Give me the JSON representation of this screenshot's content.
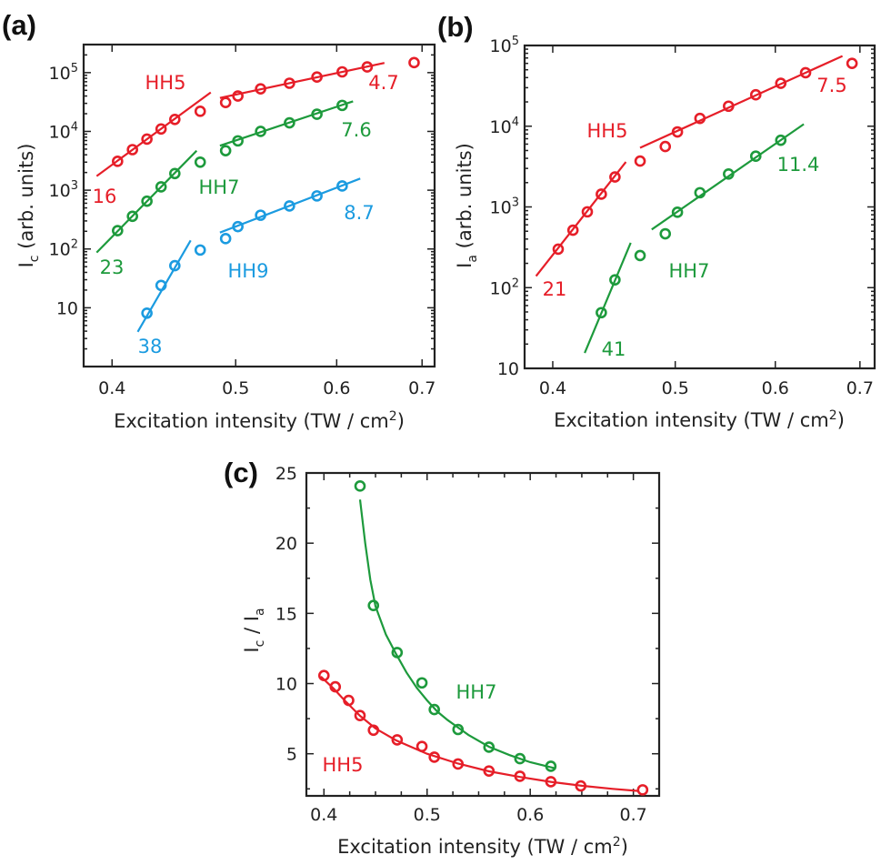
{
  "figure": {
    "panel_labels": [
      "(a)",
      "(b)",
      "(c)"
    ]
  },
  "colors": {
    "HH5": "#e61e28",
    "HH7": "#1d9a3c",
    "HH9": "#1b9be0",
    "axis": "#222222"
  },
  "chart_data": [
    {
      "panel": "(a)",
      "type": "scatter",
      "xscale": "log",
      "yscale": "log",
      "xlim": [
        0.38,
        0.716
      ],
      "ylim": [
        1,
        300000
      ],
      "xlabel": {
        "text": "Excitation intensity (TW / cm",
        "sup": "2",
        "after": ")"
      },
      "ylabel": {
        "main": "I",
        "sub": "c",
        "after": " (arb. units)"
      },
      "xticks": [
        {
          "value": 0.4,
          "label": "0.4"
        },
        {
          "value": 0.5,
          "label": "0.5"
        },
        {
          "value": 0.6,
          "label": "0.6"
        },
        {
          "value": 0.7,
          "label": "0.7"
        }
      ],
      "yticks": [
        {
          "value": 10,
          "label": "10",
          "sup": ""
        },
        {
          "value": 100,
          "label": "10",
          "sup": "2"
        },
        {
          "value": 1000,
          "label": "10",
          "sup": "3"
        },
        {
          "value": 10000,
          "label": "10",
          "sup": "4"
        },
        {
          "value": 100000,
          "label": "10",
          "sup": "5"
        }
      ],
      "series": [
        {
          "name": "HH5",
          "color": "#e61e28",
          "x": [
            0.404,
            0.415,
            0.426,
            0.437,
            0.448,
            0.469,
            0.491,
            0.502,
            0.523,
            0.551,
            0.579,
            0.606,
            0.634,
            0.69
          ],
          "y": [
            3100,
            4900,
            7400,
            11000,
            16000,
            22000,
            31000,
            40000,
            53000,
            66000,
            84000,
            103000,
            125000,
            148000
          ],
          "fits": [
            {
              "x": [
                0.389,
                0.478
              ],
              "y": [
                1740,
                46000
              ],
              "label": "16"
            },
            {
              "x": [
                0.486,
                0.654
              ],
              "y": [
                37000,
                146000
              ],
              "label": "4.7"
            }
          ]
        },
        {
          "name": "HH7",
          "color": "#1d9a3c",
          "x": [
            0.404,
            0.415,
            0.426,
            0.437,
            0.448,
            0.469,
            0.491,
            0.502,
            0.523,
            0.551,
            0.579,
            0.606
          ],
          "y": [
            205,
            360,
            650,
            1140,
            1920,
            3000,
            4700,
            6900,
            10000,
            14000,
            19600,
            27700
          ],
          "fits": [
            {
              "x": [
                0.389,
                0.466
              ],
              "y": [
                87,
                4700
              ],
              "label": "23"
            },
            {
              "x": [
                0.486,
                0.618
              ],
              "y": [
                5700,
                32500
              ],
              "label": "7.6"
            }
          ]
        },
        {
          "name": "HH9",
          "color": "#1b9be0",
          "x": [
            0.426,
            0.437,
            0.448,
            0.469,
            0.491,
            0.502,
            0.523,
            0.551,
            0.579,
            0.606
          ],
          "y": [
            8.1,
            24,
            52,
            96,
            150,
            240,
            375,
            540,
            800,
            1180
          ],
          "fits": [
            {
              "x": [
                0.419,
                0.461
              ],
              "y": [
                3.9,
                140
              ],
              "label": "38"
            },
            {
              "x": [
                0.486,
                0.626
              ],
              "y": [
                190,
                1580
              ],
              "label": "8.7"
            }
          ]
        }
      ]
    },
    {
      "panel": "(b)",
      "type": "scatter",
      "xscale": "log",
      "yscale": "log",
      "xlim": [
        0.38,
        0.719
      ],
      "ylim": [
        10,
        100000
      ],
      "xlabel": {
        "text": "Excitation intensity (TW / cm",
        "sup": "2",
        "after": ")"
      },
      "ylabel": {
        "main": "I",
        "sub": "a",
        "after": " (arb. units)"
      },
      "xticks": [
        {
          "value": 0.4,
          "label": "0.4"
        },
        {
          "value": 0.5,
          "label": "0.5"
        },
        {
          "value": 0.6,
          "label": "0.6"
        },
        {
          "value": 0.7,
          "label": "0.7"
        }
      ],
      "yticks": [
        {
          "value": 10,
          "label": "10",
          "sup": ""
        },
        {
          "value": 100,
          "label": "10",
          "sup": "2"
        },
        {
          "value": 1000,
          "label": "10",
          "sup": "3"
        },
        {
          "value": 10000,
          "label": "10",
          "sup": "4"
        },
        {
          "value": 100000,
          "label": "10",
          "sup": "5"
        }
      ],
      "series": [
        {
          "name": "HH5",
          "color": "#e61e28",
          "x": [
            0.404,
            0.415,
            0.426,
            0.437,
            0.448,
            0.469,
            0.491,
            0.502,
            0.523,
            0.551,
            0.579,
            0.606,
            0.634,
            0.69
          ],
          "y": [
            300,
            515,
            870,
            1440,
            2350,
            3700,
            5600,
            8500,
            12500,
            17700,
            24500,
            34000,
            46000,
            60000
          ],
          "fits": [
            {
              "x": [
                0.388,
                0.457
              ],
              "y": [
                139,
                3600
              ],
              "label": "21"
            },
            {
              "x": [
                0.469,
                0.678
              ],
              "y": [
                5400,
                74000
              ],
              "label": "7.5"
            }
          ]
        },
        {
          "name": "HH7",
          "color": "#1d9a3c",
          "x": [
            0.437,
            0.448,
            0.469,
            0.491,
            0.502,
            0.523,
            0.551,
            0.579,
            0.606
          ],
          "y": [
            49,
            125,
            250,
            465,
            860,
            1500,
            2560,
            4250,
            6700
          ],
          "fits": [
            {
              "x": [
                0.424,
                0.461
              ],
              "y": [
                15.5,
                360
              ],
              "label": "41"
            },
            {
              "x": [
                0.479,
                0.632
              ],
              "y": [
                525,
                10600
              ],
              "label": "11.4"
            }
          ]
        }
      ]
    },
    {
      "panel": "(c)",
      "type": "scatter",
      "xscale": "linear",
      "yscale": "linear",
      "xlim": [
        0.383,
        0.725
      ],
      "ylim": [
        2,
        25
      ],
      "xlabel": {
        "text": "Excitation intensity (TW / cm",
        "sup": "2",
        "after": ")"
      },
      "ylabel": {
        "main": "I",
        "sub": "c",
        "after": " / ",
        "main2": "I",
        "sub2": "a"
      },
      "xticks": [
        {
          "value": 0.4,
          "label": "0.4"
        },
        {
          "value": 0.5,
          "label": "0.5"
        },
        {
          "value": 0.6,
          "label": "0.6"
        },
        {
          "value": 0.7,
          "label": "0.7"
        }
      ],
      "yticks": [
        {
          "value": 5,
          "label": "5",
          "sup": ""
        },
        {
          "value": 10,
          "label": "10",
          "sup": ""
        },
        {
          "value": 15,
          "label": "15",
          "sup": ""
        },
        {
          "value": 20,
          "label": "20",
          "sup": ""
        },
        {
          "value": 25,
          "label": "25",
          "sup": ""
        }
      ],
      "series": [
        {
          "name": "HH5",
          "color": "#e61e28",
          "x": [
            0.4,
            0.411,
            0.424,
            0.435,
            0.448,
            0.471,
            0.495,
            0.507,
            0.53,
            0.56,
            0.59,
            0.62,
            0.649,
            0.709
          ],
          "y": [
            10.57,
            9.77,
            8.8,
            7.72,
            6.68,
            5.99,
            5.52,
            4.76,
            4.27,
            3.77,
            3.4,
            3.01,
            2.71,
            2.43
          ],
          "fits": [
            {
              "x": [
                0.397,
                0.41,
                0.42,
                0.435,
                0.45,
                0.47,
                0.5,
                0.53,
                0.56,
                0.59,
                0.62,
                0.65,
                0.68,
                0.705
              ],
              "y": [
                10.5,
                9.6,
                8.8,
                7.7,
                6.8,
                5.95,
                5.0,
                4.3,
                3.75,
                3.35,
                3.0,
                2.72,
                2.5,
                2.35
              ]
            }
          ]
        },
        {
          "name": "HH7",
          "color": "#1d9a3c",
          "x": [
            0.435,
            0.448,
            0.471,
            0.495,
            0.507,
            0.53,
            0.56,
            0.59,
            0.62
          ],
          "y": [
            24.07,
            15.56,
            12.21,
            10.05,
            8.15,
            6.73,
            5.47,
            4.65,
            4.11
          ],
          "fits": [
            {
              "x": [
                0.435,
                0.44,
                0.445,
                0.45,
                0.46,
                0.47,
                0.48,
                0.49,
                0.5,
                0.51,
                0.52,
                0.54,
                0.56,
                0.58,
                0.6,
                0.625
              ],
              "y": [
                23.1,
                20.0,
                17.4,
                15.5,
                13.5,
                12.1,
                10.8,
                9.7,
                8.8,
                8.0,
                7.4,
                6.35,
                5.5,
                4.9,
                4.4,
                3.95
              ]
            }
          ]
        }
      ]
    }
  ]
}
